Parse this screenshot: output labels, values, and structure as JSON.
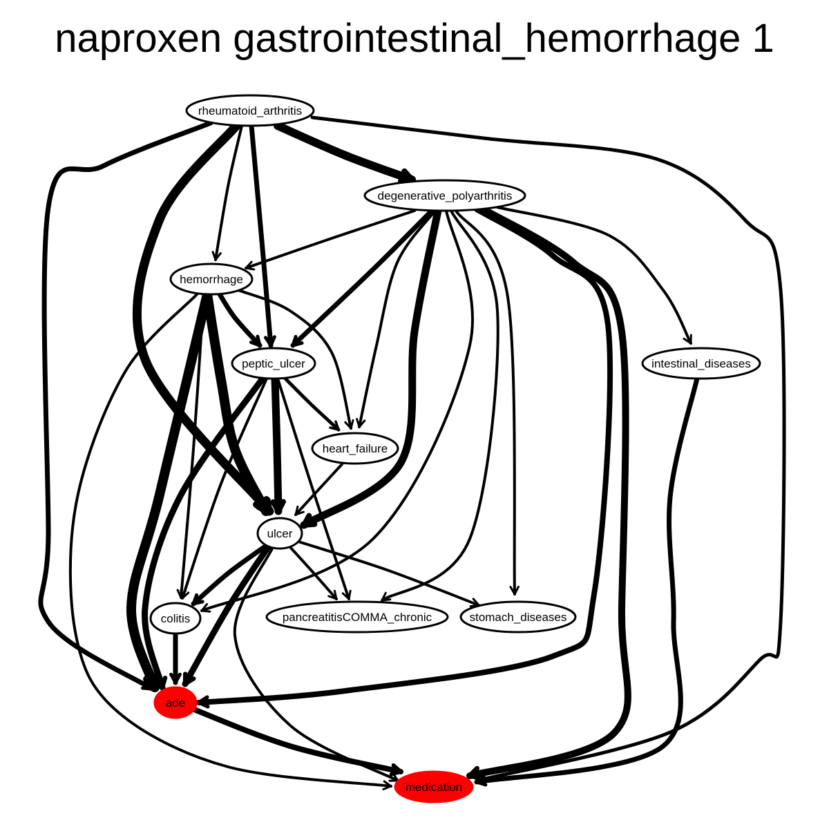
{
  "title": "naproxen gastrointestinal_hemorrhage 1",
  "colors": {
    "highlight": "#ff0000",
    "default_fill": "#ffffff",
    "stroke": "#000000"
  },
  "nodes": [
    {
      "id": "rheumatoid_arthritis",
      "label": "rheumatoid_arthritis",
      "highlight": false
    },
    {
      "id": "degenerative_polyarthritis",
      "label": "degenerative_polyarthritis",
      "highlight": false
    },
    {
      "id": "hemorrhage",
      "label": "hemorrhage",
      "highlight": false
    },
    {
      "id": "peptic_ulcer",
      "label": "peptic_ulcer",
      "highlight": false
    },
    {
      "id": "intestinal_diseases",
      "label": "intestinal_diseases",
      "highlight": false
    },
    {
      "id": "heart_failure",
      "label": "heart_failure",
      "highlight": false
    },
    {
      "id": "ulcer",
      "label": "ulcer",
      "highlight": false
    },
    {
      "id": "colitis",
      "label": "colitis",
      "highlight": false
    },
    {
      "id": "pancreatitis_chronic",
      "label": "pancreatitisCOMMA_chronic",
      "highlight": false
    },
    {
      "id": "stomach_diseases",
      "label": "stomach_diseases",
      "highlight": false
    },
    {
      "id": "ade",
      "label": "ade",
      "highlight": true
    },
    {
      "id": "medication",
      "label": "medication",
      "highlight": true
    }
  ],
  "edges": [
    {
      "from": "rheumatoid_arthritis",
      "to": "degenerative_polyarthritis",
      "weight": 12
    },
    {
      "from": "rheumatoid_arthritis",
      "to": "hemorrhage",
      "weight": 4
    },
    {
      "from": "rheumatoid_arthritis",
      "to": "peptic_ulcer",
      "weight": 7
    },
    {
      "from": "rheumatoid_arthritis",
      "to": "ulcer",
      "weight": 13
    },
    {
      "from": "rheumatoid_arthritis",
      "to": "ade",
      "weight": 7
    },
    {
      "from": "rheumatoid_arthritis",
      "to": "medication",
      "weight": 5
    },
    {
      "from": "degenerative_polyarthritis",
      "to": "hemorrhage",
      "weight": 4
    },
    {
      "from": "degenerative_polyarthritis",
      "to": "peptic_ulcer",
      "weight": 7
    },
    {
      "from": "degenerative_polyarthritis",
      "to": "heart_failure",
      "weight": 4
    },
    {
      "from": "degenerative_polyarthritis",
      "to": "ulcer",
      "weight": 11
    },
    {
      "from": "degenerative_polyarthritis",
      "to": "colitis",
      "weight": 4
    },
    {
      "from": "degenerative_polyarthritis",
      "to": "pancreatitis_chronic",
      "weight": 4
    },
    {
      "from": "degenerative_polyarthritis",
      "to": "stomach_diseases",
      "weight": 4
    },
    {
      "from": "degenerative_polyarthritis",
      "to": "intestinal_diseases",
      "weight": 4
    },
    {
      "from": "degenerative_polyarthritis",
      "to": "ade",
      "weight": 8
    },
    {
      "from": "degenerative_polyarthritis",
      "to": "medication",
      "weight": 10
    },
    {
      "from": "hemorrhage",
      "to": "peptic_ulcer",
      "weight": 7
    },
    {
      "from": "hemorrhage",
      "to": "heart_failure",
      "weight": 4
    },
    {
      "from": "hemorrhage",
      "to": "ulcer",
      "weight": 14
    },
    {
      "from": "hemorrhage",
      "to": "colitis",
      "weight": 4
    },
    {
      "from": "hemorrhage",
      "to": "ade",
      "weight": 14
    },
    {
      "from": "hemorrhage",
      "to": "medication",
      "weight": 4
    },
    {
      "from": "peptic_ulcer",
      "to": "heart_failure",
      "weight": 5
    },
    {
      "from": "peptic_ulcer",
      "to": "ulcer",
      "weight": 11
    },
    {
      "from": "peptic_ulcer",
      "to": "colitis",
      "weight": 4
    },
    {
      "from": "peptic_ulcer",
      "to": "pancreatitis_chronic",
      "weight": 4
    },
    {
      "from": "peptic_ulcer",
      "to": "ade",
      "weight": 9
    },
    {
      "from": "heart_failure",
      "to": "ulcer",
      "weight": 4
    },
    {
      "from": "ulcer",
      "to": "colitis",
      "weight": 7
    },
    {
      "from": "ulcer",
      "to": "pancreatitis_chronic",
      "weight": 4
    },
    {
      "from": "ulcer",
      "to": "stomach_diseases",
      "weight": 4
    },
    {
      "from": "ulcer",
      "to": "ade",
      "weight": 9
    },
    {
      "from": "ulcer",
      "to": "medication",
      "weight": 4
    },
    {
      "from": "colitis",
      "to": "ade",
      "weight": 7
    },
    {
      "from": "intestinal_diseases",
      "to": "medication",
      "weight": 7
    },
    {
      "from": "ade",
      "to": "medication",
      "weight": 8
    }
  ]
}
